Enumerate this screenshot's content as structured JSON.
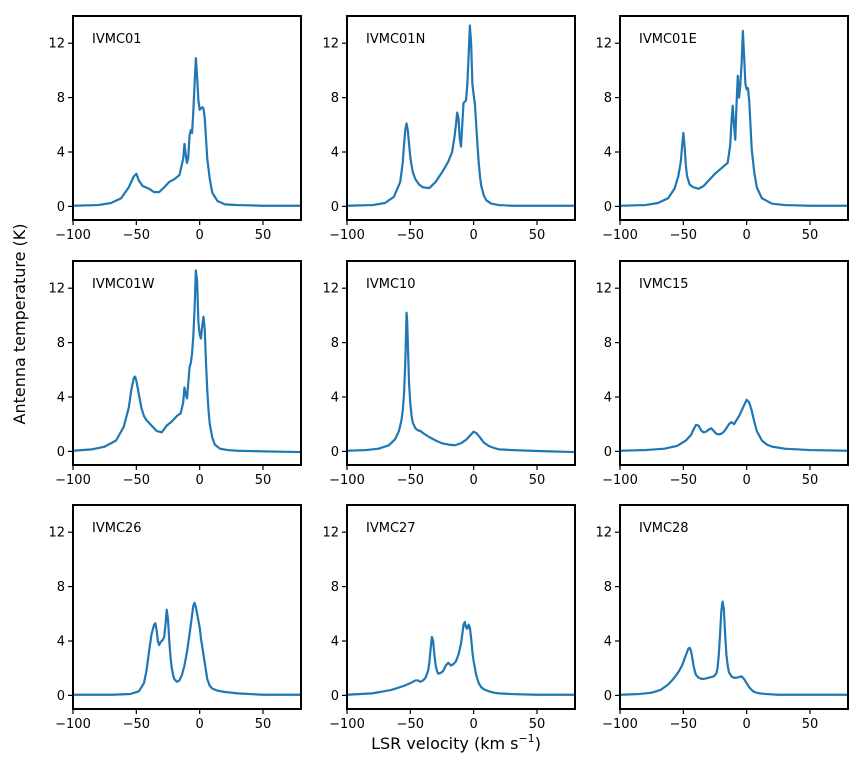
{
  "figure": {
    "ylabel": "Antenna temperature (K)",
    "xlabel_main": "LSR velocity (km s",
    "xlabel_sup": "−1",
    "xlabel_close": ")"
  },
  "colors": {
    "line": "#1f77b4",
    "axes": "#000000",
    "background": "#ffffff"
  },
  "chart_data": [
    {
      "type": "line",
      "title": "IVMC01",
      "xlim": [
        -100,
        80
      ],
      "ylim": [
        -1,
        14
      ],
      "xticks": [
        -100,
        -50,
        0,
        50
      ],
      "xtick_labels": [
        "−100",
        "−50",
        "0",
        "50"
      ],
      "yticks": [
        0,
        4,
        8,
        12
      ],
      "ytick_labels": [
        "0",
        "4",
        "8",
        "12"
      ],
      "baseline": 0.05,
      "x": [
        -100,
        -80,
        -70,
        -62,
        -56,
        -52,
        -50,
        -48,
        -45,
        -40,
        -36,
        -32,
        -28,
        -24,
        -20,
        -16,
        -13,
        -12,
        -11,
        -10,
        -9,
        -8,
        -7,
        -6,
        -5,
        -4,
        -3,
        -2,
        -1,
        0,
        1,
        2,
        3,
        4,
        5,
        6,
        8,
        10,
        14,
        20,
        30,
        50,
        80
      ],
      "y": [
        0.05,
        0.1,
        0.25,
        0.6,
        1.4,
        2.2,
        2.4,
        1.9,
        1.5,
        1.3,
        1.05,
        1.05,
        1.4,
        1.8,
        2.0,
        2.3,
        3.5,
        4.6,
        3.8,
        3.2,
        3.6,
        5.2,
        5.6,
        5.4,
        7.0,
        9.0,
        10.9,
        9.5,
        7.8,
        7.1,
        7.2,
        7.3,
        7.2,
        6.5,
        5.0,
        3.5,
        2.0,
        1.0,
        0.4,
        0.15,
        0.1,
        0.05,
        0.05
      ]
    },
    {
      "type": "line",
      "title": "IVMC01N",
      "xlim": [
        -100,
        80
      ],
      "ylim": [
        -1,
        14
      ],
      "xticks": [
        -100,
        -50,
        0,
        50
      ],
      "xtick_labels": [
        "−100",
        "−50",
        "0",
        "50"
      ],
      "yticks": [
        0,
        4,
        8,
        12
      ],
      "ytick_labels": [
        "0",
        "4",
        "8",
        "12"
      ],
      "baseline": 0.05,
      "x": [
        -100,
        -80,
        -70,
        -63,
        -58,
        -56,
        -55,
        -54,
        -53,
        -52,
        -51,
        -50,
        -49,
        -48,
        -46,
        -43,
        -40,
        -35,
        -30,
        -25,
        -20,
        -17,
        -15,
        -14,
        -13,
        -12,
        -11,
        -10,
        -9,
        -8,
        -7,
        -6,
        -5,
        -4,
        -3,
        -2,
        -1,
        0,
        1,
        2,
        3,
        4,
        5,
        6,
        8,
        10,
        14,
        20,
        30,
        50,
        80
      ],
      "y": [
        0.05,
        0.1,
        0.25,
        0.7,
        1.8,
        3.2,
        4.5,
        5.6,
        6.1,
        5.6,
        4.6,
        3.6,
        3.0,
        2.5,
        2.0,
        1.6,
        1.4,
        1.35,
        1.8,
        2.5,
        3.3,
        4.0,
        5.2,
        6.0,
        6.9,
        6.5,
        5.0,
        4.4,
        6.0,
        7.6,
        7.7,
        7.8,
        9.0,
        11.0,
        13.3,
        12.0,
        9.0,
        8.2,
        7.5,
        6.0,
        4.5,
        3.2,
        2.2,
        1.5,
        0.8,
        0.45,
        0.2,
        0.1,
        0.05,
        0.05,
        0.05
      ]
    },
    {
      "type": "line",
      "title": "IVMC01E",
      "xlim": [
        -100,
        80
      ],
      "ylim": [
        -1,
        14
      ],
      "xticks": [
        -100,
        -50,
        0,
        50
      ],
      "xtick_labels": [
        "−100",
        "−50",
        "0",
        "50"
      ],
      "yticks": [
        0,
        4,
        8,
        12
      ],
      "ytick_labels": [
        "0",
        "4",
        "8",
        "12"
      ],
      "baseline": 0.05,
      "x": [
        -100,
        -80,
        -70,
        -62,
        -57,
        -54,
        -52,
        -51,
        -50,
        -49,
        -48,
        -47,
        -45,
        -42,
        -38,
        -34,
        -30,
        -25,
        -20,
        -15,
        -13,
        -12,
        -11,
        -10,
        -9,
        -8,
        -7,
        -6,
        -5,
        -4,
        -3,
        -2,
        -1,
        0,
        1,
        2,
        3,
        4,
        6,
        8,
        12,
        20,
        30,
        50,
        80
      ],
      "y": [
        0.05,
        0.1,
        0.25,
        0.6,
        1.3,
        2.2,
        3.3,
        4.4,
        5.4,
        4.4,
        3.0,
        2.2,
        1.6,
        1.4,
        1.3,
        1.5,
        1.9,
        2.4,
        2.8,
        3.2,
        4.5,
        6.2,
        7.4,
        6.0,
        4.9,
        7.5,
        9.6,
        8.0,
        9.0,
        10.5,
        12.9,
        11.0,
        9.0,
        8.6,
        8.7,
        7.8,
        6.0,
        4.2,
        2.5,
        1.4,
        0.6,
        0.2,
        0.1,
        0.05,
        0.05
      ]
    },
    {
      "type": "line",
      "title": "IVMC01W",
      "xlim": [
        -100,
        80
      ],
      "ylim": [
        -1,
        14
      ],
      "xticks": [
        -100,
        -50,
        0,
        50
      ],
      "xtick_labels": [
        "−100",
        "−50",
        "0",
        "50"
      ],
      "yticks": [
        0,
        4,
        8,
        12
      ],
      "ytick_labels": [
        "0",
        "4",
        "8",
        "12"
      ],
      "baseline": 0.05,
      "x": [
        -100,
        -85,
        -75,
        -66,
        -60,
        -56,
        -54,
        -52,
        -51,
        -50,
        -48,
        -46,
        -44,
        -42,
        -40,
        -37,
        -34,
        -30,
        -26,
        -22,
        -18,
        -15,
        -13,
        -12,
        -11,
        -10,
        -9,
        -8,
        -7,
        -6,
        -5,
        -4,
        -3,
        -2,
        -1,
        0,
        1,
        2,
        3,
        4,
        5,
        6,
        7,
        8,
        10,
        12,
        16,
        22,
        30,
        50,
        80
      ],
      "y": [
        0.05,
        0.15,
        0.35,
        0.8,
        1.8,
        3.2,
        4.5,
        5.4,
        5.5,
        5.2,
        4.2,
        3.2,
        2.6,
        2.3,
        2.1,
        1.8,
        1.5,
        1.4,
        1.9,
        2.2,
        2.6,
        2.8,
        3.6,
        4.7,
        4.2,
        3.9,
        5.0,
        6.2,
        6.5,
        7.2,
        8.5,
        10.5,
        13.3,
        12.5,
        9.5,
        8.6,
        8.3,
        9.2,
        9.9,
        9.0,
        6.5,
        4.5,
        3.0,
        2.0,
        1.0,
        0.5,
        0.2,
        0.1,
        0.05,
        0.0,
        -0.05
      ]
    },
    {
      "type": "line",
      "title": "IVMC10",
      "xlim": [
        -100,
        80
      ],
      "ylim": [
        -1,
        14
      ],
      "xticks": [
        -100,
        -50,
        0,
        50
      ],
      "xtick_labels": [
        "−100",
        "−50",
        "0",
        "50"
      ],
      "yticks": [
        0,
        4,
        8,
        12
      ],
      "ytick_labels": [
        "0",
        "4",
        "8",
        "12"
      ],
      "baseline": 0.05,
      "x": [
        -100,
        -85,
        -75,
        -67,
        -62,
        -59,
        -57,
        -56,
        -55,
        -54,
        -53.5,
        -53,
        -52.5,
        -52,
        -51,
        -50,
        -49,
        -48,
        -46,
        -44,
        -42,
        -40,
        -35,
        -30,
        -25,
        -20,
        -15,
        -10,
        -6,
        -3,
        0,
        2,
        4,
        6,
        8,
        12,
        16,
        20,
        30,
        45,
        60,
        80
      ],
      "y": [
        0.05,
        0.1,
        0.2,
        0.45,
        0.9,
        1.5,
        2.3,
        3.0,
        4.2,
        6.5,
        8.2,
        10.2,
        9.6,
        8.0,
        5.0,
        3.5,
        2.6,
        2.1,
        1.7,
        1.55,
        1.5,
        1.35,
        1.05,
        0.8,
        0.6,
        0.5,
        0.45,
        0.6,
        0.85,
        1.15,
        1.45,
        1.35,
        1.15,
        0.9,
        0.65,
        0.4,
        0.25,
        0.15,
        0.1,
        0.05,
        0.0,
        -0.05
      ]
    },
    {
      "type": "line",
      "title": "IVMC15",
      "xlim": [
        -100,
        80
      ],
      "ylim": [
        -1,
        14
      ],
      "xticks": [
        -100,
        -50,
        0,
        50
      ],
      "xtick_labels": [
        "−100",
        "−50",
        "0",
        "50"
      ],
      "yticks": [
        0,
        4,
        8,
        12
      ],
      "ytick_labels": [
        "0",
        "4",
        "8",
        "12"
      ],
      "baseline": 0.05,
      "x": [
        -100,
        -80,
        -65,
        -55,
        -48,
        -44,
        -42,
        -40,
        -38,
        -36,
        -34,
        -32,
        -30,
        -28,
        -26,
        -24,
        -22,
        -20,
        -18,
        -16,
        -14,
        -12,
        -10,
        -8,
        -6,
        -4,
        -2,
        0,
        2,
        4,
        6,
        8,
        12,
        16,
        20,
        30,
        50,
        80
      ],
      "y": [
        0.05,
        0.1,
        0.2,
        0.4,
        0.8,
        1.2,
        1.6,
        1.95,
        1.9,
        1.55,
        1.4,
        1.45,
        1.6,
        1.7,
        1.5,
        1.3,
        1.25,
        1.3,
        1.45,
        1.7,
        2.0,
        2.15,
        2.0,
        2.3,
        2.6,
        3.0,
        3.4,
        3.8,
        3.6,
        3.0,
        2.2,
        1.5,
        0.8,
        0.5,
        0.35,
        0.2,
        0.1,
        0.05
      ]
    },
    {
      "type": "line",
      "title": "IVMC26",
      "xlim": [
        -100,
        80
      ],
      "ylim": [
        -1,
        14
      ],
      "xticks": [
        -100,
        -50,
        0,
        50
      ],
      "xtick_labels": [
        "−100",
        "−50",
        "0",
        "50"
      ],
      "yticks": [
        0,
        4,
        8,
        12
      ],
      "ytick_labels": [
        "0",
        "4",
        "8",
        "12"
      ],
      "baseline": 0.05,
      "x": [
        -100,
        -70,
        -55,
        -48,
        -44,
        -42,
        -40,
        -38,
        -36,
        -35,
        -34,
        -33,
        -32,
        -31,
        -30,
        -29,
        -28,
        -27,
        -26,
        -25,
        -24,
        -23,
        -22,
        -21,
        -20,
        -18,
        -16,
        -14,
        -12,
        -10,
        -8,
        -6,
        -5,
        -4,
        -3,
        -2,
        -1,
        0,
        1,
        2,
        3,
        4,
        5,
        6,
        8,
        10,
        14,
        20,
        30,
        50,
        80
      ],
      "y": [
        0.05,
        0.05,
        0.1,
        0.3,
        0.9,
        1.8,
        3.2,
        4.5,
        5.2,
        5.3,
        4.8,
        4.0,
        3.7,
        3.9,
        4.0,
        4.1,
        4.3,
        5.2,
        6.3,
        5.6,
        4.0,
        2.8,
        2.0,
        1.5,
        1.2,
        1.0,
        1.1,
        1.5,
        2.2,
        3.2,
        4.5,
        5.9,
        6.6,
        6.8,
        6.5,
        6.0,
        5.5,
        5.0,
        4.2,
        3.6,
        3.0,
        2.4,
        1.8,
        1.2,
        0.7,
        0.5,
        0.35,
        0.25,
        0.15,
        0.05,
        0.05
      ]
    },
    {
      "type": "line",
      "title": "IVMC27",
      "xlim": [
        -100,
        80
      ],
      "ylim": [
        -1,
        14
      ],
      "xticks": [
        -100,
        -50,
        0,
        50
      ],
      "xtick_labels": [
        "−100",
        "−50",
        "0",
        "50"
      ],
      "yticks": [
        0,
        4,
        8,
        12
      ],
      "ytick_labels": [
        "0",
        "4",
        "8",
        "12"
      ],
      "baseline": 0.05,
      "x": [
        -100,
        -80,
        -65,
        -55,
        -50,
        -46,
        -44,
        -42,
        -40,
        -38,
        -36,
        -35,
        -34,
        -33,
        -32,
        -31,
        -30,
        -29,
        -28,
        -26,
        -24,
        -22,
        -20,
        -18,
        -16,
        -14,
        -12,
        -10,
        -9,
        -8,
        -7,
        -6,
        -5,
        -4,
        -3,
        -2,
        -1,
        0,
        2,
        4,
        6,
        8,
        12,
        16,
        20,
        30,
        50,
        80
      ],
      "y": [
        0.05,
        0.15,
        0.4,
        0.7,
        0.9,
        1.1,
        1.1,
        1.0,
        1.1,
        1.3,
        1.8,
        2.4,
        3.4,
        4.3,
        4.0,
        3.0,
        2.2,
        1.8,
        1.6,
        1.65,
        1.8,
        2.2,
        2.4,
        2.2,
        2.3,
        2.5,
        3.0,
        3.8,
        4.5,
        5.2,
        5.4,
        5.0,
        4.9,
        5.2,
        5.0,
        4.2,
        3.2,
        2.5,
        1.5,
        0.9,
        0.6,
        0.45,
        0.3,
        0.2,
        0.15,
        0.1,
        0.05,
        0.05
      ]
    },
    {
      "type": "line",
      "title": "IVMC28",
      "xlim": [
        -100,
        80
      ],
      "ylim": [
        -1,
        14
      ],
      "xticks": [
        -100,
        -50,
        0,
        50
      ],
      "xtick_labels": [
        "−100",
        "−50",
        "0",
        "50"
      ],
      "yticks": [
        0,
        4,
        8,
        12
      ],
      "ytick_labels": [
        "0",
        "4",
        "8",
        "12"
      ],
      "baseline": 0.05,
      "x": [
        -100,
        -85,
        -75,
        -68,
        -62,
        -58,
        -54,
        -51,
        -49,
        -47,
        -46,
        -45,
        -44,
        -43,
        -42,
        -41,
        -40,
        -38,
        -35,
        -32,
        -30,
        -28,
        -26,
        -24,
        -23,
        -22,
        -21,
        -20,
        -19,
        -18,
        -17,
        -16,
        -15,
        -14,
        -12,
        -10,
        -8,
        -6,
        -4,
        -2,
        0,
        2,
        4,
        6,
        10,
        16,
        25,
        40,
        60,
        80
      ],
      "y": [
        0.05,
        0.1,
        0.2,
        0.4,
        0.8,
        1.2,
        1.7,
        2.2,
        2.7,
        3.2,
        3.45,
        3.5,
        3.3,
        2.8,
        2.2,
        1.8,
        1.5,
        1.3,
        1.2,
        1.25,
        1.3,
        1.35,
        1.4,
        1.6,
        2.0,
        3.0,
        4.5,
        6.2,
        6.9,
        6.3,
        4.5,
        3.0,
        2.2,
        1.7,
        1.4,
        1.3,
        1.3,
        1.35,
        1.4,
        1.2,
        0.9,
        0.6,
        0.4,
        0.25,
        0.15,
        0.1,
        0.05,
        0.05,
        0.05,
        0.05
      ]
    }
  ]
}
